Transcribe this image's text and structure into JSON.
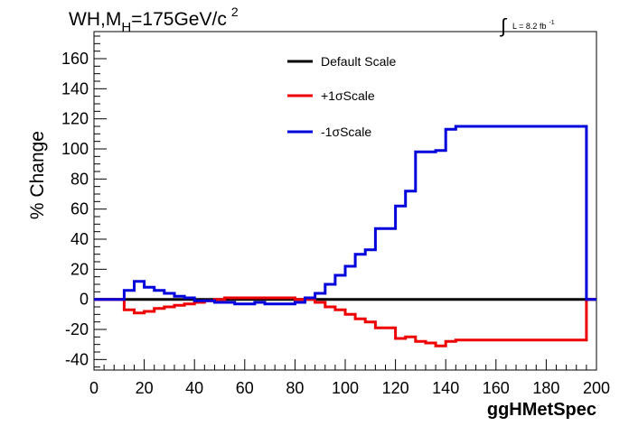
{
  "chart_data": {
    "type": "line",
    "title_main": "WH,M",
    "title_sub": "H",
    "title_rest": "=175GeV/c",
    "title_sup": "2",
    "lumi_label": "L = 8.2 fb",
    "lumi_sup": "-1",
    "lumi_integral": "∫",
    "xlabel": "ggHMetSpec",
    "ylabel": "% Change",
    "xlim": [
      0,
      200
    ],
    "ylim": [
      -47,
      178
    ],
    "xticks": [
      0,
      20,
      40,
      60,
      80,
      100,
      120,
      140,
      160,
      180,
      200
    ],
    "yticks": [
      -40,
      -20,
      0,
      20,
      40,
      60,
      80,
      100,
      120,
      140,
      160
    ],
    "grid": false,
    "legend_position": "top-center",
    "series": [
      {
        "name": "Default Scale",
        "color": "#000000",
        "edges": [
          0,
          200
        ],
        "values": [
          0
        ]
      },
      {
        "name": "+1σScale",
        "color": "#ee0000",
        "edges": [
          0,
          12,
          16,
          20,
          24,
          28,
          32,
          36,
          40,
          44,
          48,
          52,
          56,
          60,
          64,
          68,
          72,
          76,
          80,
          84,
          88,
          92,
          96,
          100,
          104,
          108,
          112,
          120,
          124,
          128,
          132,
          136,
          140,
          144,
          196,
          200
        ],
        "values": [
          0,
          -7,
          -9,
          -8,
          -6,
          -5,
          -4,
          -3,
          -2,
          -1,
          0,
          1,
          1,
          1,
          1,
          1,
          1,
          1,
          0,
          0,
          -2,
          -5,
          -7,
          -10,
          -13,
          -15,
          -19,
          -26,
          -25,
          -28,
          -29,
          -31,
          -28,
          -27,
          0
        ]
      },
      {
        "name": "-1σScale",
        "color": "#0000dd",
        "edges": [
          0,
          12,
          16,
          20,
          24,
          28,
          32,
          36,
          40,
          44,
          48,
          52,
          56,
          60,
          64,
          68,
          72,
          76,
          80,
          84,
          88,
          92,
          96,
          100,
          104,
          108,
          112,
          120,
          124,
          128,
          132,
          136,
          140,
          144,
          196,
          200
        ],
        "values": [
          0,
          6,
          12,
          8,
          6,
          4,
          2,
          1,
          -1,
          -1,
          -2,
          -2,
          -3,
          -3,
          -2,
          -3,
          -3,
          -3,
          -2,
          1,
          4,
          10,
          16,
          22,
          30,
          33,
          47,
          62,
          72,
          98,
          98,
          99,
          113,
          115,
          0
        ]
      }
    ]
  }
}
